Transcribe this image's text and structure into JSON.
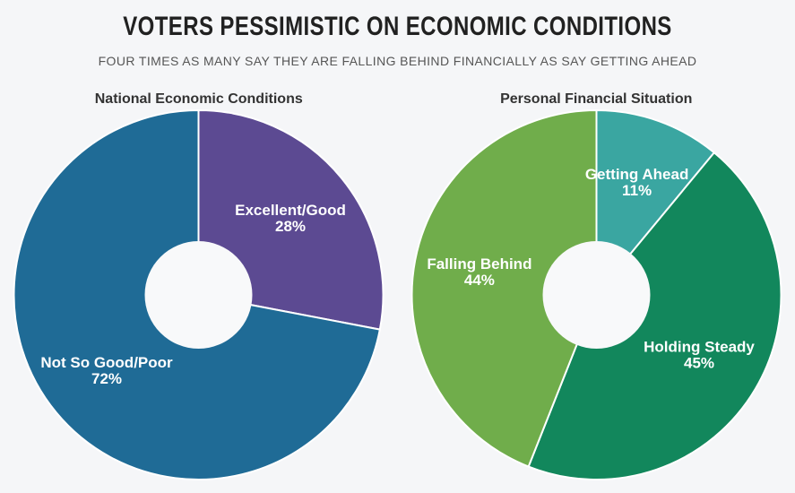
{
  "page": {
    "title": "VOTERS PESSIMISTIC ON ECONOMIC CONDITIONS",
    "subtitle": "FOUR TIMES AS MANY SAY THEY ARE FALLING BEHIND FINANCIALLY AS SAY GETTING AHEAD"
  },
  "colors": {
    "background": "#f5f6f8",
    "title_text": "#212121",
    "subtitle_text": "#565656",
    "chart_title_text": "#333333",
    "slice_label_text": "#ffffff",
    "slice_border": "#ffffff",
    "donut_hole": "#f8f9fa"
  },
  "chart_data": [
    {
      "type": "pie",
      "style": "donut",
      "title": "National Economic Conditions",
      "start_angle_deg": 0,
      "direction": "clockwise",
      "slices": [
        {
          "label": "Excellent/Good",
          "value": 28,
          "pct_label": "28%",
          "color": "#5c4a92"
        },
        {
          "label": "Not So Good/Poor",
          "value": 72,
          "pct_label": "72%",
          "color": "#1f6b96"
        }
      ]
    },
    {
      "type": "pie",
      "style": "donut",
      "title": "Personal Financial Situation",
      "start_angle_deg": 0,
      "direction": "clockwise",
      "slices": [
        {
          "label": "Getting Ahead",
          "value": 11,
          "pct_label": "11%",
          "color": "#3aa6a1"
        },
        {
          "label": "Holding Steady",
          "value": 45,
          "pct_label": "45%",
          "color": "#12875c"
        },
        {
          "label": "Falling Behind",
          "value": 44,
          "pct_label": "44%",
          "color": "#70ad4b"
        }
      ]
    }
  ]
}
